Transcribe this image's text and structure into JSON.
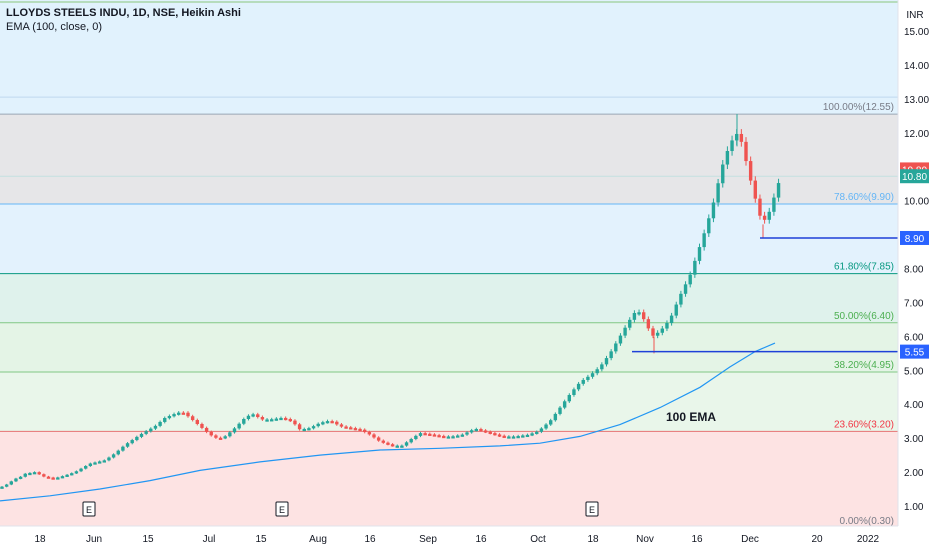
{
  "header": {
    "symbol_line": "LLOYDS STEELS INDU, 1D, NSE, Heikin Ashi",
    "indicator_line": "EMA (100, close, 0)",
    "currency": "INR"
  },
  "chart_data": {
    "type": "candlestick",
    "style": "Heikin Ashi",
    "ylim": [
      0.7,
      15.5
    ],
    "y_ticks": [
      "1.00",
      "2.00",
      "3.00",
      "4.00",
      "5.00",
      "6.00",
      "7.00",
      "8.00",
      "9.00",
      "10.00",
      "11.00",
      "12.00",
      "13.00",
      "14.00",
      "15.00"
    ],
    "x_ticks": [
      "18",
      "Jun",
      "15",
      "Jul",
      "15",
      "Aug",
      "16",
      "Sep",
      "16",
      "Oct",
      "18",
      "Nov",
      "16",
      "Dec",
      "20",
      "2022"
    ],
    "earnings_markers": [
      "E",
      "E",
      "E"
    ],
    "fib_levels": [
      {
        "label": "100.00%(12.55)",
        "value": 12.55,
        "color": "#787b86"
      },
      {
        "label": "78.60%(9.90)",
        "value": 9.9,
        "color": "#64b5f6"
      },
      {
        "label": "61.80%(7.85)",
        "value": 7.85,
        "color": "#089981"
      },
      {
        "label": "50.00%(6.40)",
        "value": 6.4,
        "color": "#4caf50"
      },
      {
        "label": "38.20%(4.95)",
        "value": 4.95,
        "color": "#4caf50"
      },
      {
        "label": "23.60%(3.20)",
        "value": 3.2,
        "color": "#f23645"
      },
      {
        "label": "0.00%(0.30)",
        "value": 0.3,
        "color": "#787b86"
      }
    ],
    "price_badges": [
      {
        "label": "10.80",
        "value": 10.92,
        "color": "#ef5350"
      },
      {
        "label": "10.80",
        "value": 10.72,
        "color": "#26a69a"
      },
      {
        "label": "8.90",
        "value": 8.9,
        "color": "#2962ff"
      },
      {
        "label": "5.55",
        "value": 5.55,
        "color": "#2962ff"
      }
    ],
    "horizontal_lines": [
      8.9,
      5.55
    ],
    "annotation": "100 EMA",
    "colors": {
      "up": "#26a69a",
      "down": "#ef5350",
      "ema": "#2196f3",
      "hline": "#1e40d8"
    }
  }
}
